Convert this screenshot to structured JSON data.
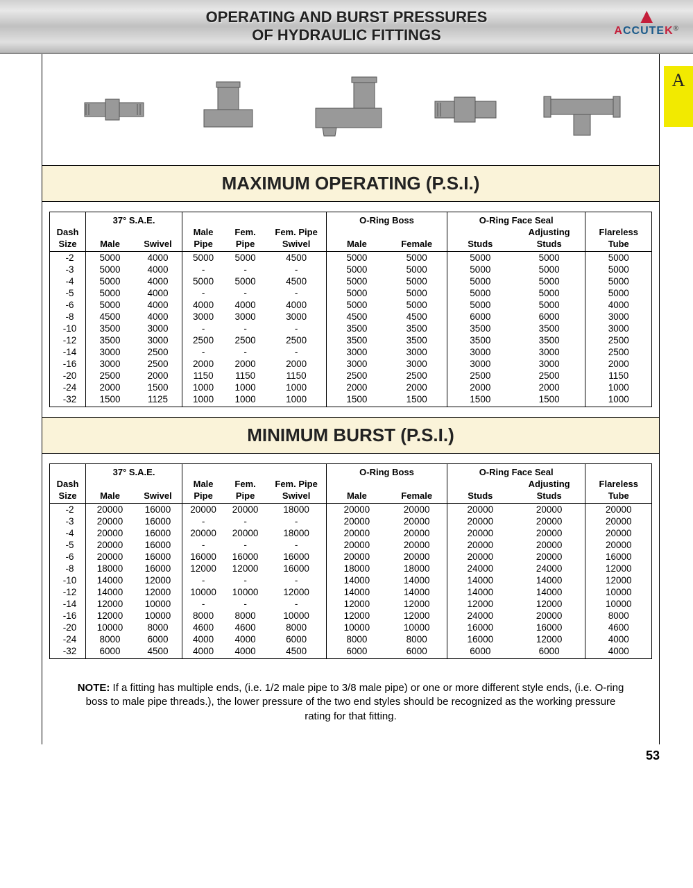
{
  "header": {
    "title_l1": "OPERATING AND BURST PRESSURES",
    "title_l2": "OF HYDRAULIC FITTINGS",
    "logo_name": "ACCUTEK"
  },
  "side_tab": "A",
  "section1_title": "MAXIMUM OPERATING (P.S.I.)",
  "section2_title": "MINIMUM BURST (P.S.I.)",
  "columns": {
    "dash_l1": "Dash",
    "dash_l2": "Size",
    "sae_group": "37° S.A.E.",
    "sae_male": "Male",
    "sae_swivel": "Swivel",
    "mpipe_l1": "Male",
    "mpipe_l2": "Pipe",
    "fpipe_l1": "Fem.",
    "fpipe_l2": "Pipe",
    "fpswivel_l1": "Fem. Pipe",
    "fpswivel_l2": "Swivel",
    "boss_group": "O-Ring Boss",
    "boss_male": "Male",
    "boss_female": "Female",
    "face_group": "O-Ring Face Seal",
    "face_studs": "Studs",
    "face_adj_l1": "Adjusting",
    "face_adj_l2": "Studs",
    "flare_l1": "Flareless",
    "flare_l2": "Tube"
  },
  "operating": [
    {
      "d": "-2",
      "v": [
        "5000",
        "4000",
        "5000",
        "5000",
        "4500",
        "5000",
        "5000",
        "5000",
        "5000",
        "5000"
      ]
    },
    {
      "d": "-3",
      "v": [
        "5000",
        "4000",
        "-",
        "-",
        "-",
        "5000",
        "5000",
        "5000",
        "5000",
        "5000"
      ]
    },
    {
      "d": "-4",
      "v": [
        "5000",
        "4000",
        "5000",
        "5000",
        "4500",
        "5000",
        "5000",
        "5000",
        "5000",
        "5000"
      ]
    },
    {
      "d": "-5",
      "v": [
        "5000",
        "4000",
        "-",
        "-",
        "-",
        "5000",
        "5000",
        "5000",
        "5000",
        "5000"
      ]
    },
    {
      "d": "-6",
      "v": [
        "5000",
        "4000",
        "4000",
        "4000",
        "4000",
        "5000",
        "5000",
        "5000",
        "5000",
        "4000"
      ]
    },
    {
      "d": "-8",
      "v": [
        "4500",
        "4000",
        "3000",
        "3000",
        "3000",
        "4500",
        "4500",
        "6000",
        "6000",
        "3000"
      ]
    },
    {
      "d": "-10",
      "v": [
        "3500",
        "3000",
        "-",
        "-",
        "-",
        "3500",
        "3500",
        "3500",
        "3500",
        "3000"
      ]
    },
    {
      "d": "-12",
      "v": [
        "3500",
        "3000",
        "2500",
        "2500",
        "2500",
        "3500",
        "3500",
        "3500",
        "3500",
        "2500"
      ]
    },
    {
      "d": "-14",
      "v": [
        "3000",
        "2500",
        "-",
        "-",
        "-",
        "3000",
        "3000",
        "3000",
        "3000",
        "2500"
      ]
    },
    {
      "d": "-16",
      "v": [
        "3000",
        "2500",
        "2000",
        "2000",
        "2000",
        "3000",
        "3000",
        "3000",
        "3000",
        "2000"
      ]
    },
    {
      "d": "-20",
      "v": [
        "2500",
        "2000",
        "1150",
        "1150",
        "1150",
        "2500",
        "2500",
        "2500",
        "2500",
        "1150"
      ]
    },
    {
      "d": "-24",
      "v": [
        "2000",
        "1500",
        "1000",
        "1000",
        "1000",
        "2000",
        "2000",
        "2000",
        "2000",
        "1000"
      ]
    },
    {
      "d": "-32",
      "v": [
        "1500",
        "1125",
        "1000",
        "1000",
        "1000",
        "1500",
        "1500",
        "1500",
        "1500",
        "1000"
      ]
    }
  ],
  "burst": [
    {
      "d": "-2",
      "v": [
        "20000",
        "16000",
        "20000",
        "20000",
        "18000",
        "20000",
        "20000",
        "20000",
        "20000",
        "20000"
      ]
    },
    {
      "d": "-3",
      "v": [
        "20000",
        "16000",
        "-",
        "-",
        "-",
        "20000",
        "20000",
        "20000",
        "20000",
        "20000"
      ]
    },
    {
      "d": "-4",
      "v": [
        "20000",
        "16000",
        "20000",
        "20000",
        "18000",
        "20000",
        "20000",
        "20000",
        "20000",
        "20000"
      ]
    },
    {
      "d": "-5",
      "v": [
        "20000",
        "16000",
        "-",
        "-",
        "-",
        "20000",
        "20000",
        "20000",
        "20000",
        "20000"
      ]
    },
    {
      "d": "-6",
      "v": [
        "20000",
        "16000",
        "16000",
        "16000",
        "16000",
        "20000",
        "20000",
        "20000",
        "20000",
        "16000"
      ]
    },
    {
      "d": "-8",
      "v": [
        "18000",
        "16000",
        "12000",
        "12000",
        "16000",
        "18000",
        "18000",
        "24000",
        "24000",
        "12000"
      ]
    },
    {
      "d": "-10",
      "v": [
        "14000",
        "12000",
        "-",
        "-",
        "-",
        "14000",
        "14000",
        "14000",
        "14000",
        "12000"
      ]
    },
    {
      "d": "-12",
      "v": [
        "14000",
        "12000",
        "10000",
        "10000",
        "12000",
        "14000",
        "14000",
        "14000",
        "14000",
        "10000"
      ]
    },
    {
      "d": "-14",
      "v": [
        "12000",
        "10000",
        "-",
        "-",
        "-",
        "12000",
        "12000",
        "12000",
        "12000",
        "10000"
      ]
    },
    {
      "d": "-16",
      "v": [
        "12000",
        "10000",
        "8000",
        "8000",
        "10000",
        "12000",
        "12000",
        "24000",
        "20000",
        "8000"
      ]
    },
    {
      "d": "-20",
      "v": [
        "10000",
        "8000",
        "4600",
        "4600",
        "8000",
        "10000",
        "10000",
        "16000",
        "16000",
        "4600"
      ]
    },
    {
      "d": "-24",
      "v": [
        "8000",
        "6000",
        "4000",
        "4000",
        "6000",
        "8000",
        "8000",
        "16000",
        "12000",
        "4000"
      ]
    },
    {
      "d": "-32",
      "v": [
        "6000",
        "4500",
        "4000",
        "4000",
        "4500",
        "6000",
        "6000",
        "6000",
        "6000",
        "4000"
      ]
    }
  ],
  "note_label": "NOTE:",
  "note_text": "If a fitting has multiple ends, (i.e. 1/2 male pipe to 3/8 male pipe) or one or more different style ends, (i.e. O-ring boss to male pipe threads.), the lower pressure of the two end styles should be recognized as the working pressure rating for that fitting.",
  "page_number": "53",
  "colors": {
    "section_bg": "#faf3d9",
    "tab_bg": "#f2ea00",
    "logo_red": "#c41e3a",
    "logo_blue": "#1a5a8a"
  }
}
